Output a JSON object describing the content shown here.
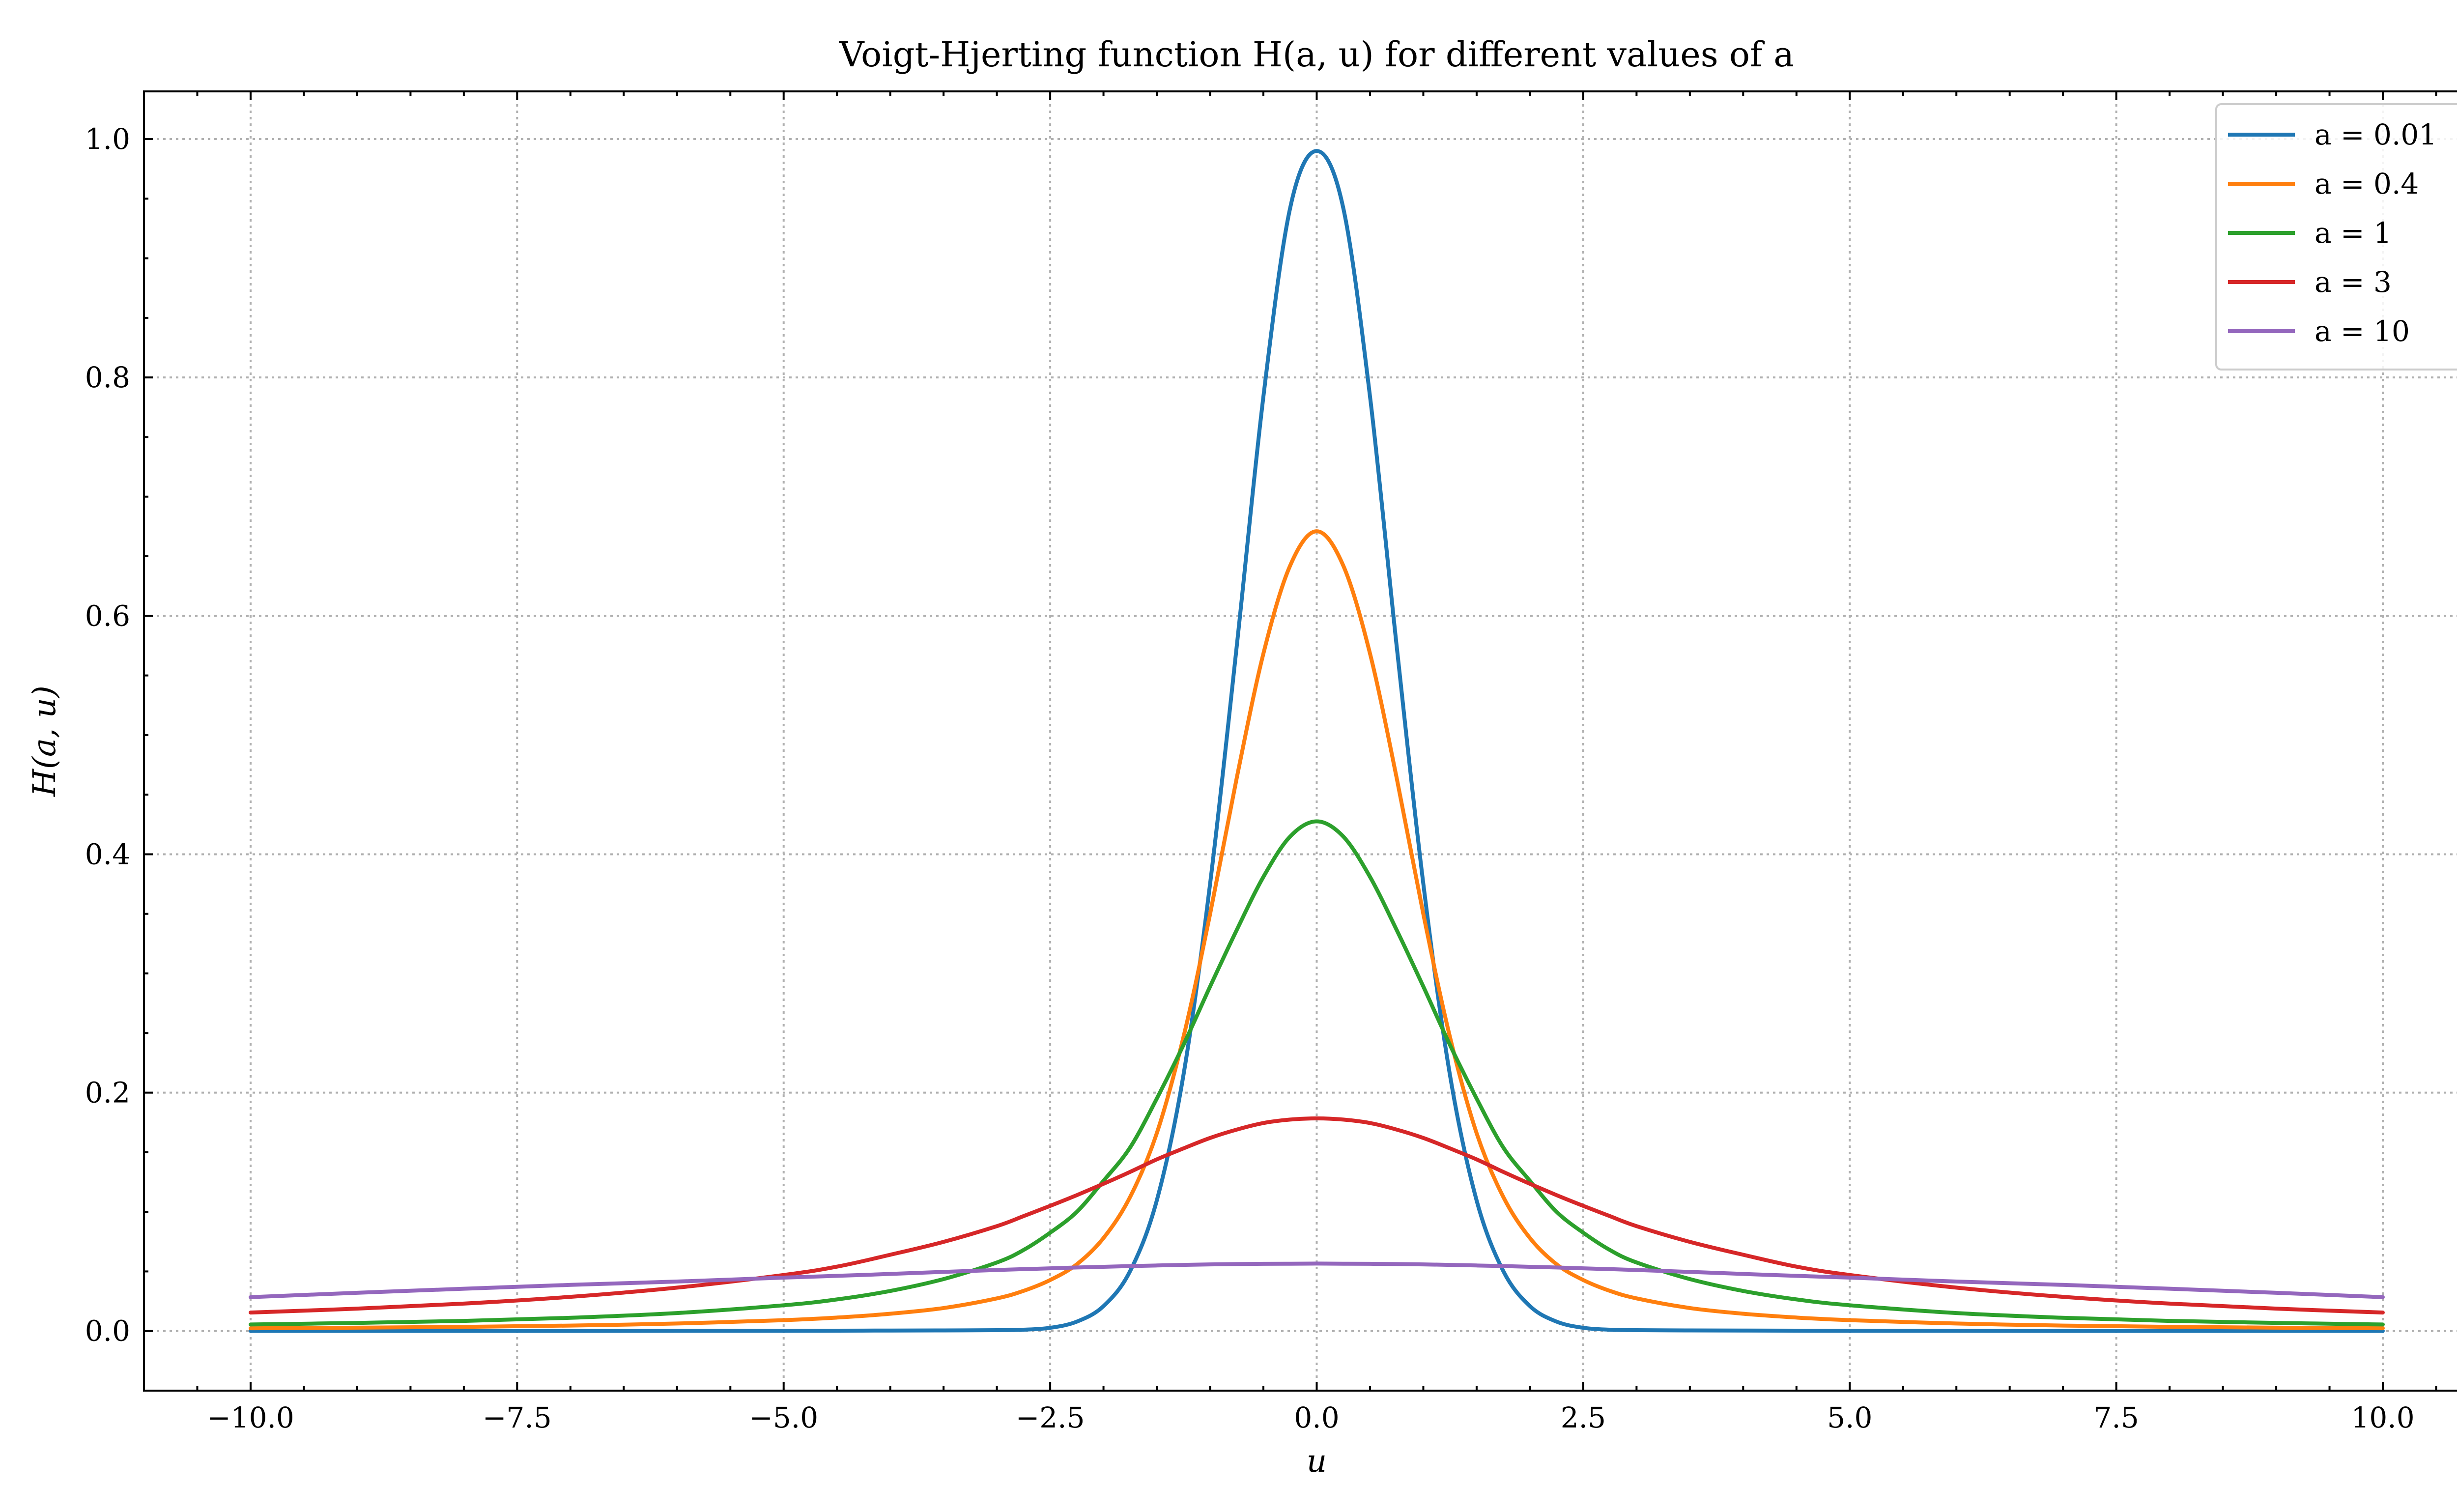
{
  "chart_data": {
    "type": "line",
    "title": "Voigt-Hjerting function H(a, u) for different values of a",
    "xlabel": "u",
    "ylabel": "H(a, u)",
    "xlim": [
      -11,
      11
    ],
    "ylim": [
      -0.05,
      1.04
    ],
    "grid": true,
    "legend_position": "top-right",
    "x_ticks": [
      -10.0,
      -7.5,
      -5.0,
      -2.5,
      0.0,
      2.5,
      5.0,
      7.5,
      10.0
    ],
    "x_tick_labels": [
      "−10.0",
      "−7.5",
      "−5.0",
      "−2.5",
      "0.0",
      "2.5",
      "5.0",
      "7.5",
      "10.0"
    ],
    "y_ticks": [
      0.0,
      0.2,
      0.4,
      0.6,
      0.8,
      1.0
    ],
    "y_tick_labels": [
      "0.0",
      "0.2",
      "0.4",
      "0.6",
      "0.8",
      "1.0"
    ],
    "x": [
      -10,
      -9,
      -8,
      -7,
      -6,
      -5,
      -4.5,
      -4,
      -3.5,
      -3,
      -2.75,
      -2.5,
      -2.25,
      -2,
      -1.75,
      -1.5,
      -1.25,
      -1,
      -0.75,
      -0.5,
      -0.25,
      0,
      0.25,
      0.5,
      0.75,
      1,
      1.25,
      1.5,
      1.75,
      2,
      2.25,
      2.5,
      2.75,
      3,
      3.5,
      4,
      4.5,
      5,
      6,
      7,
      8,
      9,
      10
    ],
    "series": [
      {
        "name": "a = 0.01",
        "color": "#1f77b4",
        "values": [
          0.0001,
          0.0001,
          0.0001,
          0.0001,
          0.0002,
          0.0002,
          0.0003,
          0.0004,
          0.0005,
          0.0007,
          0.0011,
          0.0027,
          0.0079,
          0.0209,
          0.0503,
          0.1096,
          0.2147,
          0.3751,
          0.5747,
          0.7839,
          0.9419,
          0.99,
          0.9419,
          0.7839,
          0.5747,
          0.3751,
          0.2147,
          0.1096,
          0.0503,
          0.0209,
          0.0079,
          0.0027,
          0.0011,
          0.0007,
          0.0005,
          0.0004,
          0.0003,
          0.0002,
          0.0002,
          0.0001,
          0.0001,
          0.0001,
          0.0001
        ]
      },
      {
        "name": "a = 0.4",
        "color": "#ff7f0e",
        "values": [
          0.0023,
          0.0028,
          0.0035,
          0.0046,
          0.0063,
          0.0091,
          0.0113,
          0.0145,
          0.0193,
          0.0274,
          0.0337,
          0.0428,
          0.056,
          0.078,
          0.1125,
          0.166,
          0.2466,
          0.3498,
          0.4641,
          0.5683,
          0.642,
          0.671,
          0.642,
          0.5683,
          0.4641,
          0.3498,
          0.2466,
          0.166,
          0.1125,
          0.078,
          0.056,
          0.0428,
          0.0337,
          0.0274,
          0.0193,
          0.0145,
          0.0113,
          0.0091,
          0.0063,
          0.0046,
          0.0035,
          0.0028,
          0.0023
        ]
      },
      {
        "name": "a = 1",
        "color": "#2ca02c",
        "values": [
          0.0055,
          0.0068,
          0.0085,
          0.0111,
          0.0151,
          0.0216,
          0.0265,
          0.0336,
          0.0436,
          0.0575,
          0.068,
          0.0825,
          0.1,
          0.126,
          0.154,
          0.195,
          0.24,
          0.289,
          0.3365,
          0.381,
          0.4148,
          0.4276,
          0.4148,
          0.381,
          0.3365,
          0.289,
          0.24,
          0.195,
          0.154,
          0.126,
          0.1,
          0.0825,
          0.068,
          0.0575,
          0.0436,
          0.0336,
          0.0265,
          0.0216,
          0.0151,
          0.0111,
          0.0085,
          0.0068,
          0.0055
        ]
      },
      {
        "name": "a = 3",
        "color": "#d62728",
        "values": [
          0.0155,
          0.0188,
          0.023,
          0.0287,
          0.0364,
          0.047,
          0.054,
          0.064,
          0.0748,
          0.088,
          0.0964,
          0.105,
          0.114,
          0.1235,
          0.1335,
          0.144,
          0.1532,
          0.162,
          0.169,
          0.1745,
          0.1774,
          0.1784,
          0.1774,
          0.1745,
          0.169,
          0.162,
          0.1532,
          0.144,
          0.1335,
          0.1235,
          0.114,
          0.105,
          0.0964,
          0.088,
          0.0748,
          0.064,
          0.054,
          0.047,
          0.0364,
          0.0287,
          0.023,
          0.0188,
          0.0155
        ]
      },
      {
        "name": "a = 10",
        "color": "#9467bd",
        "values": [
          0.0284,
          0.0321,
          0.0355,
          0.0387,
          0.0415,
          0.0448,
          0.0463,
          0.0479,
          0.0496,
          0.0512,
          0.0519,
          0.0526,
          0.0533,
          0.0539,
          0.0545,
          0.055,
          0.0555,
          0.0559,
          0.0562,
          0.0564,
          0.0565,
          0.0566,
          0.0565,
          0.0564,
          0.0562,
          0.0559,
          0.0555,
          0.055,
          0.0545,
          0.0539,
          0.0533,
          0.0526,
          0.0519,
          0.0512,
          0.0496,
          0.0479,
          0.0463,
          0.0448,
          0.0415,
          0.0387,
          0.0355,
          0.0321,
          0.0284
        ]
      }
    ]
  }
}
